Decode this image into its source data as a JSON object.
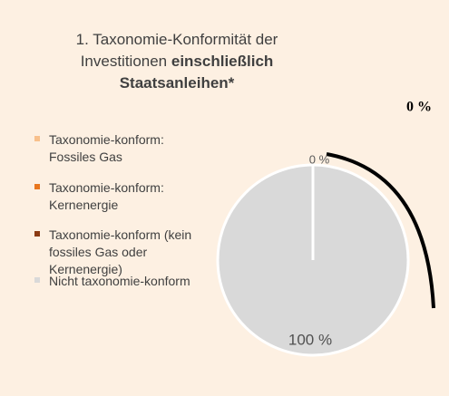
{
  "chart_data": {
    "type": "pie",
    "title": "1. Taxonomie-Konformität der Investitionen",
    "title_bold": "einschließlich Staatsanleihen*",
    "categories": [
      "Taxonomie-konform: Fossiles Gas",
      "Taxonomie-konform: Kernenergie",
      "Taxonomie-konform (kein fossiles Gas oder Kernenergie)",
      "Nicht taxonomie-konform"
    ],
    "values": [
      0,
      0,
      0,
      100
    ],
    "value_labels": [
      "0 %",
      null,
      null,
      "100 %"
    ],
    "colors": [
      "#f8c08c",
      "#e8761e",
      "#8b3a12",
      "#d9d9d9"
    ],
    "annotation": "0 %"
  }
}
